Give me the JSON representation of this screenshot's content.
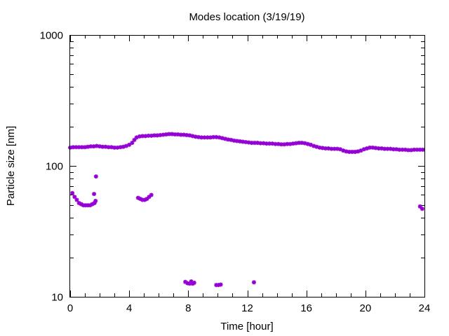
{
  "chart_data": {
    "type": "scatter",
    "title": "Modes location (3/19/19)",
    "xlabel": "Time [hour]",
    "ylabel": "Particle size [nm]",
    "xlim": [
      0,
      24
    ],
    "ylim": [
      10,
      1000
    ],
    "yscale": "log",
    "x_ticks": [
      0,
      4,
      8,
      12,
      16,
      20,
      24
    ],
    "x_tick_labels": [
      "0",
      "4",
      "8",
      "12",
      "16",
      "20",
      "24"
    ],
    "y_ticks": [
      10,
      100,
      1000
    ],
    "y_tick_labels": [
      "10",
      "100",
      "1000"
    ],
    "grid": false,
    "legend": "none",
    "marker_color": "#9400d3",
    "series": [
      {
        "points": [
          [
            0.0,
            138
          ],
          [
            0.2,
            139
          ],
          [
            0.4,
            139
          ],
          [
            0.6,
            139
          ],
          [
            0.8,
            139
          ],
          [
            1.0,
            139
          ],
          [
            1.2,
            140
          ],
          [
            1.4,
            141
          ],
          [
            1.6,
            141
          ],
          [
            1.8,
            142
          ],
          [
            2.0,
            141
          ],
          [
            2.2,
            140
          ],
          [
            2.4,
            140
          ],
          [
            2.6,
            139
          ],
          [
            2.8,
            139
          ],
          [
            3.0,
            138
          ],
          [
            3.2,
            138
          ],
          [
            3.4,
            139
          ],
          [
            3.6,
            140
          ],
          [
            3.8,
            142
          ],
          [
            4.0,
            145
          ],
          [
            4.2,
            150
          ],
          [
            4.35,
            158
          ],
          [
            4.5,
            165
          ],
          [
            4.7,
            168
          ],
          [
            4.9,
            169
          ],
          [
            5.1,
            169
          ],
          [
            5.3,
            170
          ],
          [
            5.5,
            170
          ],
          [
            5.7,
            171
          ],
          [
            5.9,
            171
          ],
          [
            6.1,
            172
          ],
          [
            6.3,
            173
          ],
          [
            6.5,
            174
          ],
          [
            6.7,
            175
          ],
          [
            6.9,
            175
          ],
          [
            7.1,
            174
          ],
          [
            7.3,
            174
          ],
          [
            7.5,
            173
          ],
          [
            7.7,
            173
          ],
          [
            7.9,
            172
          ],
          [
            8.1,
            171
          ],
          [
            8.3,
            169
          ],
          [
            8.5,
            167
          ],
          [
            8.7,
            166
          ],
          [
            8.9,
            165
          ],
          [
            9.1,
            165
          ],
          [
            9.3,
            165
          ],
          [
            9.5,
            165
          ],
          [
            9.7,
            166
          ],
          [
            9.9,
            166
          ],
          [
            10.1,
            165
          ],
          [
            10.3,
            163
          ],
          [
            10.5,
            161
          ],
          [
            10.7,
            159
          ],
          [
            10.9,
            158
          ],
          [
            11.1,
            156
          ],
          [
            11.3,
            155
          ],
          [
            11.5,
            154
          ],
          [
            11.7,
            153
          ],
          [
            11.9,
            152
          ],
          [
            12.1,
            151
          ],
          [
            12.3,
            150
          ],
          [
            12.5,
            150
          ],
          [
            12.7,
            150
          ],
          [
            12.9,
            149
          ],
          [
            13.1,
            149
          ],
          [
            13.3,
            148
          ],
          [
            13.5,
            148
          ],
          [
            13.7,
            148
          ],
          [
            13.9,
            147
          ],
          [
            14.1,
            147
          ],
          [
            14.3,
            146
          ],
          [
            14.5,
            146
          ],
          [
            14.7,
            147
          ],
          [
            14.9,
            147
          ],
          [
            15.1,
            148
          ],
          [
            15.3,
            149
          ],
          [
            15.5,
            150
          ],
          [
            15.7,
            150
          ],
          [
            15.9,
            149
          ],
          [
            16.1,
            147
          ],
          [
            16.3,
            145
          ],
          [
            16.5,
            142
          ],
          [
            16.7,
            140
          ],
          [
            16.9,
            138
          ],
          [
            17.1,
            137
          ],
          [
            17.3,
            136
          ],
          [
            17.5,
            136
          ],
          [
            17.7,
            135
          ],
          [
            17.9,
            135
          ],
          [
            18.1,
            135
          ],
          [
            18.3,
            134
          ],
          [
            18.5,
            131
          ],
          [
            18.7,
            129
          ],
          [
            18.9,
            128
          ],
          [
            19.1,
            128
          ],
          [
            19.3,
            128
          ],
          [
            19.5,
            129
          ],
          [
            19.7,
            131
          ],
          [
            19.9,
            134
          ],
          [
            20.1,
            136
          ],
          [
            20.3,
            138
          ],
          [
            20.5,
            138
          ],
          [
            20.7,
            137
          ],
          [
            20.9,
            136
          ],
          [
            21.1,
            136
          ],
          [
            21.3,
            135
          ],
          [
            21.5,
            135
          ],
          [
            21.7,
            135
          ],
          [
            21.9,
            134
          ],
          [
            22.1,
            134
          ],
          [
            22.3,
            133
          ],
          [
            22.5,
            133
          ],
          [
            22.7,
            133
          ],
          [
            22.9,
            132
          ],
          [
            23.1,
            132
          ],
          [
            23.3,
            133
          ],
          [
            23.5,
            133
          ],
          [
            23.7,
            133
          ],
          [
            23.9,
            133
          ]
        ]
      },
      {
        "points": [
          [
            0.15,
            62
          ],
          [
            0.3,
            58
          ],
          [
            0.45,
            55
          ],
          [
            0.6,
            52
          ],
          [
            0.75,
            51
          ],
          [
            0.9,
            50
          ],
          [
            1.05,
            50
          ],
          [
            1.2,
            50
          ],
          [
            1.35,
            50
          ],
          [
            1.5,
            51
          ],
          [
            1.65,
            52
          ],
          [
            1.72,
            54
          ],
          [
            1.62,
            61
          ],
          [
            1.75,
            83
          ],
          [
            4.6,
            57
          ],
          [
            4.75,
            56
          ],
          [
            4.9,
            55
          ],
          [
            5.05,
            55
          ],
          [
            5.2,
            56
          ],
          [
            5.35,
            58
          ],
          [
            5.5,
            60
          ],
          [
            23.7,
            49
          ],
          [
            23.85,
            47
          ]
        ]
      },
      {
        "points": [
          [
            7.8,
            13
          ],
          [
            7.95,
            12.7
          ],
          [
            8.1,
            12.6
          ],
          [
            8.2,
            13.1
          ],
          [
            8.3,
            12.6
          ],
          [
            8.4,
            12.8
          ],
          [
            9.9,
            12.3
          ],
          [
            10.05,
            12.3
          ],
          [
            10.2,
            12.4
          ],
          [
            12.45,
            12.9
          ]
        ]
      }
    ]
  }
}
